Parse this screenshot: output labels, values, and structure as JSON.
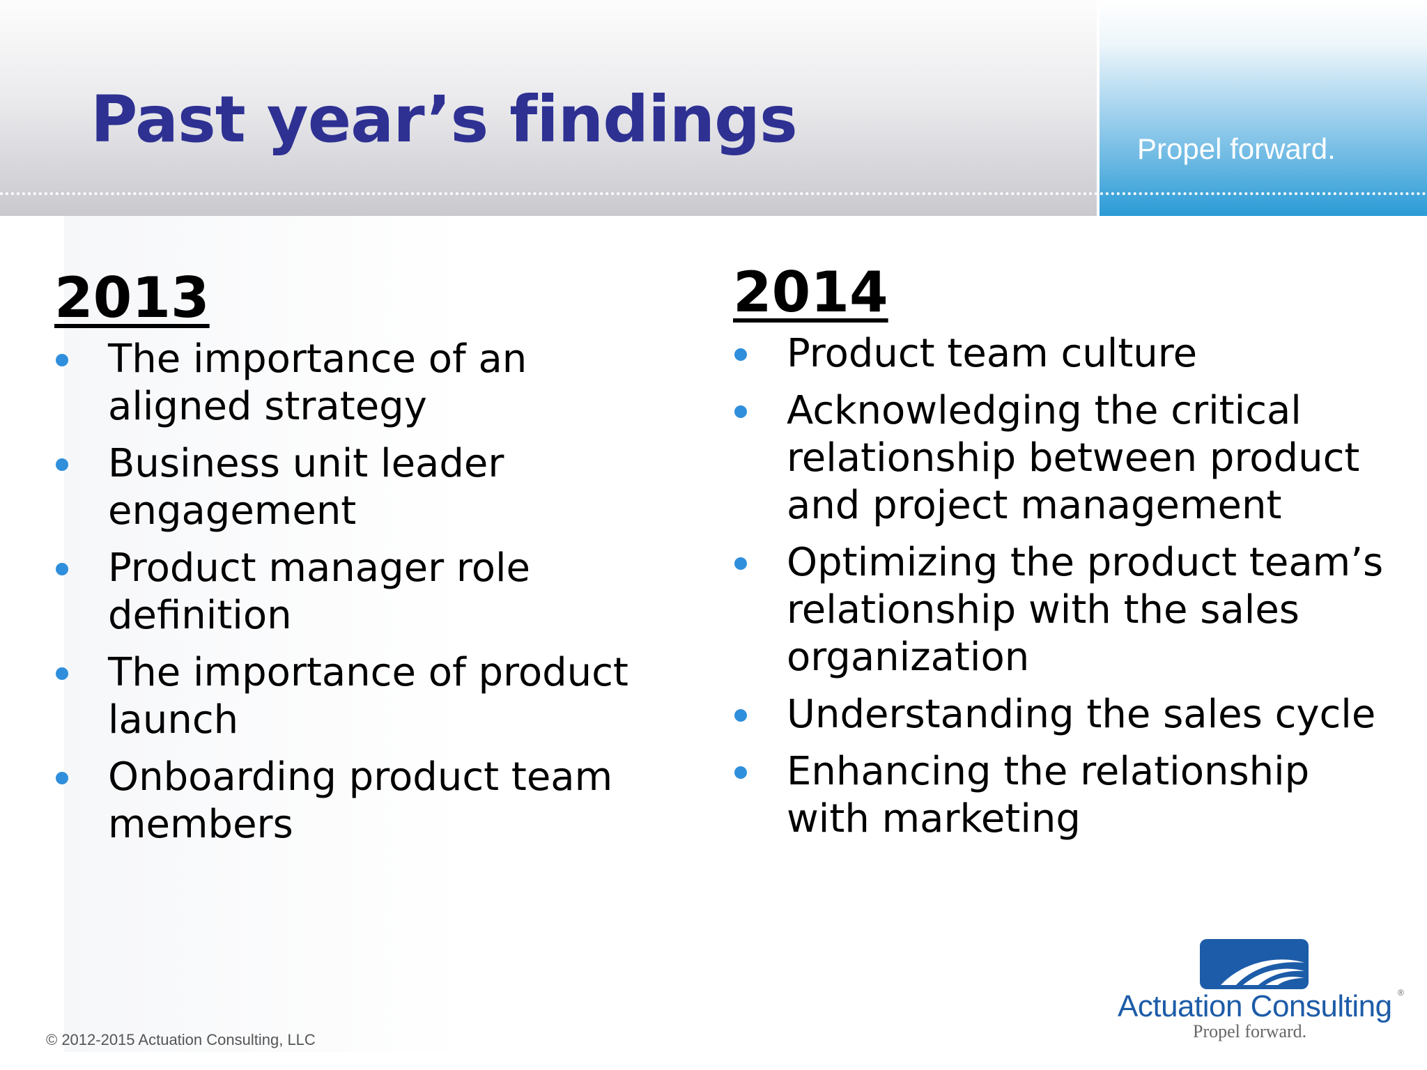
{
  "header": {
    "title": "Past year’s findings",
    "tagline": "Propel forward."
  },
  "columns": [
    {
      "year": "2013",
      "items": [
        "The importance of an aligned strategy",
        "Business unit leader engagement",
        "Product manager role definition",
        "The importance of product launch",
        "Onboarding product team members"
      ]
    },
    {
      "year": "2014",
      "items": [
        "Product team culture",
        "Acknowledging the critical relationship between product and project management",
        "Optimizing the product team’s relationship with the sales organization",
        "Understanding the sales cycle",
        "Enhancing the relationship with marketing"
      ]
    }
  ],
  "footer": {
    "copyright": "© 2012-2015 Actuation Consulting, LLC"
  },
  "logo": {
    "name": "Actuation Consulting",
    "tagline": "Propel forward.",
    "registered": "®"
  },
  "colors": {
    "title": "#2e3192",
    "bullet": "#2f8fdc",
    "logo_blue": "#1d5ca8"
  }
}
